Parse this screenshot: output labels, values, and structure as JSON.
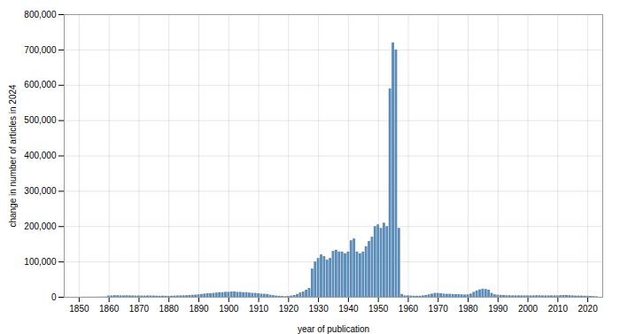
{
  "chart_data": {
    "type": "bar",
    "xlabel": "year of publication",
    "ylabel": "change in number of articles in 2024",
    "color": "#5b8db8",
    "grid": true,
    "xlim": [
      1845,
      2025
    ],
    "ylim": [
      0,
      800000
    ],
    "xticks": [
      1850,
      1860,
      1870,
      1880,
      1890,
      1900,
      1910,
      1920,
      1930,
      1940,
      1950,
      1960,
      1970,
      1980,
      1990,
      2000,
      2010,
      2020
    ],
    "yticks": [
      0,
      {
        "value": 100000,
        "label": "100,000"
      },
      {
        "value": 200000,
        "label": "200,000"
      },
      {
        "value": 300000,
        "label": "300,000"
      },
      {
        "value": 400000,
        "label": "400,000"
      },
      {
        "value": 500000,
        "label": "500,000"
      },
      {
        "value": 600000,
        "label": "600,000"
      },
      {
        "value": 700000,
        "label": "700,000"
      },
      {
        "value": 800000,
        "label": "800,000"
      }
    ],
    "x": [
      1850,
      1851,
      1852,
      1853,
      1854,
      1855,
      1856,
      1857,
      1858,
      1859,
      1860,
      1861,
      1862,
      1863,
      1864,
      1865,
      1866,
      1867,
      1868,
      1869,
      1870,
      1871,
      1872,
      1873,
      1874,
      1875,
      1876,
      1877,
      1878,
      1879,
      1880,
      1881,
      1882,
      1883,
      1884,
      1885,
      1886,
      1887,
      1888,
      1889,
      1890,
      1891,
      1892,
      1893,
      1894,
      1895,
      1896,
      1897,
      1898,
      1899,
      1900,
      1901,
      1902,
      1903,
      1904,
      1905,
      1906,
      1907,
      1908,
      1909,
      1910,
      1911,
      1912,
      1913,
      1914,
      1915,
      1916,
      1917,
      1918,
      1919,
      1920,
      1921,
      1922,
      1923,
      1924,
      1925,
      1926,
      1927,
      1928,
      1929,
      1930,
      1931,
      1932,
      1933,
      1934,
      1935,
      1936,
      1937,
      1938,
      1939,
      1940,
      1941,
      1942,
      1943,
      1944,
      1945,
      1946,
      1947,
      1948,
      1949,
      1950,
      1951,
      1952,
      1953,
      1954,
      1955,
      1956,
      1957,
      1958,
      1959,
      1960,
      1961,
      1962,
      1963,
      1964,
      1965,
      1966,
      1967,
      1968,
      1969,
      1970,
      1971,
      1972,
      1973,
      1974,
      1975,
      1976,
      1977,
      1978,
      1979,
      1980,
      1981,
      1982,
      1983,
      1984,
      1985,
      1986,
      1987,
      1988,
      1989,
      1990,
      1991,
      1992,
      1993,
      1994,
      1995,
      1996,
      1997,
      1998,
      1999,
      2000,
      2001,
      2002,
      2003,
      2004,
      2005,
      2006,
      2007,
      2008,
      2009,
      2010,
      2011,
      2012,
      2013,
      2014,
      2015,
      2016,
      2017,
      2018,
      2019,
      2020,
      2021,
      2022,
      2023
    ],
    "values": [
      200,
      200,
      300,
      300,
      400,
      400,
      500,
      600,
      700,
      800,
      3500,
      4000,
      4500,
      4500,
      4000,
      4000,
      4500,
      4000,
      3800,
      3500,
      3800,
      3500,
      3500,
      3800,
      3800,
      3500,
      3200,
      3000,
      3200,
      3000,
      2800,
      3000,
      3500,
      3800,
      4000,
      4200,
      4500,
      5000,
      5500,
      6000,
      7000,
      8000,
      9000,
      10000,
      10000,
      11000,
      12000,
      13000,
      13000,
      14000,
      14000,
      15000,
      15000,
      14000,
      14000,
      13000,
      13000,
      12000,
      11000,
      11000,
      10000,
      9000,
      8500,
      8000,
      6000,
      4500,
      3500,
      2800,
      2200,
      1800,
      2500,
      3500,
      5000,
      8000,
      12000,
      15000,
      20000,
      25000,
      80000,
      100000,
      110000,
      120000,
      115000,
      105000,
      110000,
      130000,
      133000,
      128000,
      128000,
      123000,
      128000,
      160000,
      165000,
      128000,
      123000,
      128000,
      143000,
      158000,
      170000,
      200000,
      205000,
      195000,
      210000,
      200000,
      590000,
      720000,
      700000,
      195000,
      8000,
      4000,
      4000,
      3500,
      3000,
      3000,
      3000,
      4000,
      5000,
      7000,
      9000,
      11000,
      11000,
      10000,
      9000,
      8500,
      8500,
      8000,
      7500,
      7500,
      7000,
      6500,
      7000,
      9000,
      14000,
      18000,
      21000,
      23000,
      22000,
      20000,
      11000,
      7000,
      6000,
      5500,
      5000,
      4500,
      4500,
      4000,
      4000,
      4000,
      4000,
      4000,
      4000,
      4000,
      4000,
      4500,
      4500,
      4000,
      4000,
      4000,
      4000,
      4000,
      4000,
      4500,
      5000,
      5000,
      4500,
      4000,
      3500,
      3500,
      3500,
      3000,
      3000,
      2500,
      2000,
      1500
    ]
  }
}
